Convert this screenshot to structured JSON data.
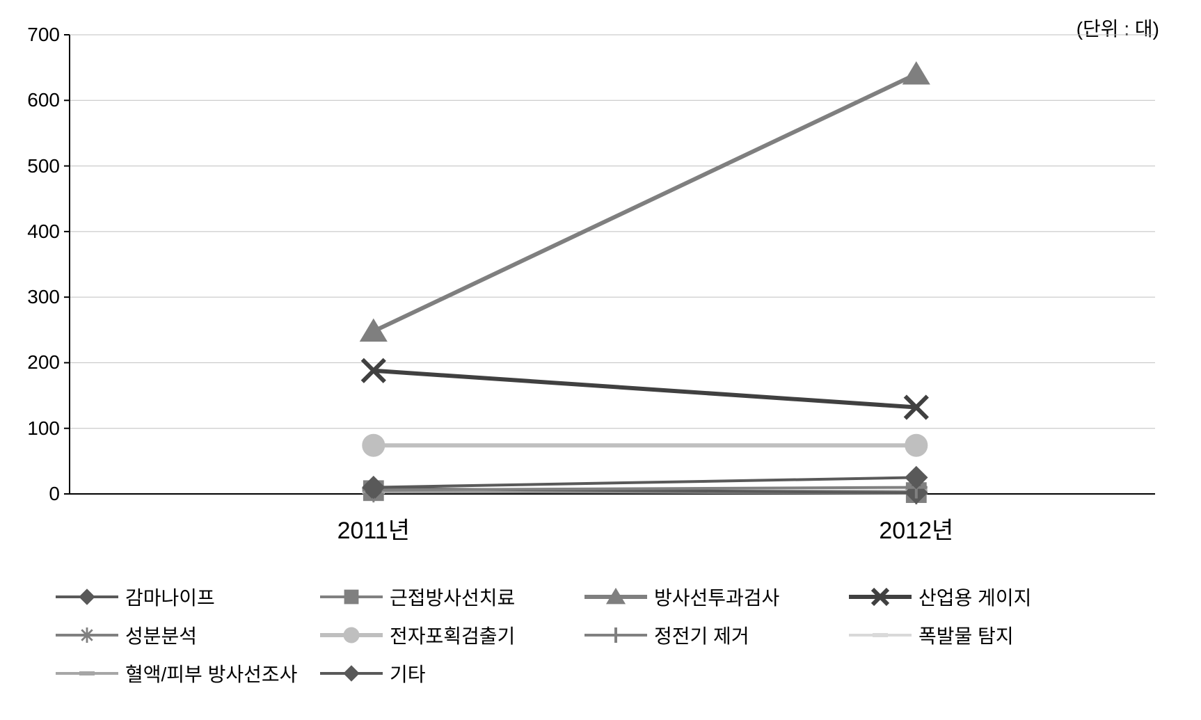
{
  "chart": {
    "type": "line",
    "unit_label": "(단위 : 대)",
    "background_color": "#ffffff",
    "grid_color": "#bfbfbf",
    "axis_color": "#000000",
    "ylim": [
      0,
      700
    ],
    "yticks": [
      0,
      100,
      200,
      300,
      400,
      500,
      600,
      700
    ],
    "x_categories": [
      "2011년",
      "2012년"
    ],
    "x_positions": [
      0.28,
      0.78
    ],
    "tick_fontsize": 28,
    "xlabel_fontsize": 34,
    "line_width": 6,
    "thin_line_width": 4,
    "marker_size": 16,
    "series": [
      {
        "name": "감마나이프",
        "values": [
          8,
          2
        ],
        "color": "#595959",
        "marker": "diamond",
        "lw": 4
      },
      {
        "name": "근접방사선치료",
        "values": [
          5,
          2
        ],
        "color": "#808080",
        "marker": "square",
        "lw": 4
      },
      {
        "name": "방사선투과검사",
        "values": [
          248,
          640
        ],
        "color": "#7f7f7f",
        "marker": "triangle",
        "lw": 6
      },
      {
        "name": "산업용 게이지",
        "values": [
          188,
          132
        ],
        "color": "#404040",
        "marker": "x",
        "lw": 6
      },
      {
        "name": "성분분석",
        "values": [
          4,
          1
        ],
        "color": "#808080",
        "marker": "asterisk",
        "lw": 4
      },
      {
        "name": "전자포획검출기",
        "values": [
          74,
          74
        ],
        "color": "#bfbfbf",
        "marker": "circle",
        "lw": 6
      },
      {
        "name": "정전기 제거",
        "values": [
          6,
          10
        ],
        "color": "#808080",
        "marker": "plus",
        "lw": 4
      },
      {
        "name": "폭발물 탐지",
        "values": [
          3,
          3
        ],
        "color": "#d9d9d9",
        "marker": "dash",
        "lw": 4
      },
      {
        "name": "혈액/피부 방사선조사",
        "values": [
          5,
          4
        ],
        "color": "#a6a6a6",
        "marker": "dash",
        "lw": 4
      },
      {
        "name": "기타",
        "values": [
          10,
          25
        ],
        "color": "#595959",
        "marker": "diamond",
        "lw": 4
      }
    ]
  }
}
